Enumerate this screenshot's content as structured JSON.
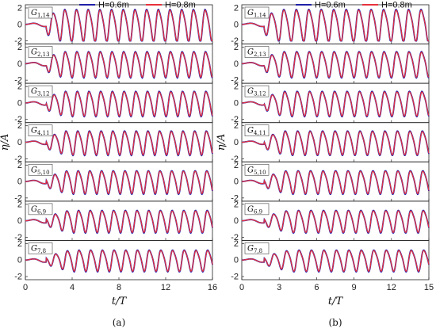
{
  "chart_data": [
    {
      "type": "line",
      "panel_label": "(a)",
      "xlabel": "t/T",
      "ylabel": "η/A",
      "xlim": [
        0,
        16
      ],
      "ylim": [
        -2,
        2
      ],
      "x_ticks": [
        "0",
        "4",
        "8",
        "12",
        "16"
      ],
      "y_ticks": [
        "-2",
        "0",
        "2"
      ],
      "series": [
        {
          "name": "H=0.6m",
          "color": "#1f1fa8"
        },
        {
          "name": "H=0.8m",
          "color": "#e8313c"
        }
      ],
      "legend": "top-right",
      "subplots": [
        {
          "gauge": "G",
          "sub": "1,14"
        },
        {
          "gauge": "G",
          "sub": "2,13"
        },
        {
          "gauge": "G",
          "sub": "3,12"
        },
        {
          "gauge": "G",
          "sub": "4,11"
        },
        {
          "gauge": "G",
          "sub": "5,10"
        },
        {
          "gauge": "G",
          "sub": "6,9"
        },
        {
          "gauge": "G",
          "sub": "7,8"
        }
      ]
    },
    {
      "type": "line",
      "panel_label": "(b)",
      "xlabel": "t/T",
      "ylabel": "η/A",
      "xlim": [
        0,
        15
      ],
      "ylim": [
        -2,
        2
      ],
      "x_ticks": [
        "0",
        "3",
        "6",
        "9",
        "12",
        "15"
      ],
      "y_ticks": [
        "-2",
        "0",
        "2"
      ],
      "series": [
        {
          "name": "H=0.6m",
          "color": "#1f1fa8"
        },
        {
          "name": "H=0.8m",
          "color": "#e8313c"
        }
      ],
      "legend": "top-right",
      "subplots": [
        {
          "gauge": "G",
          "sub": "1,14"
        },
        {
          "gauge": "G",
          "sub": "2,13"
        },
        {
          "gauge": "G",
          "sub": "3,12"
        },
        {
          "gauge": "G",
          "sub": "4,11"
        },
        {
          "gauge": "G",
          "sub": "5,10"
        },
        {
          "gauge": "G",
          "sub": "6,9"
        },
        {
          "gauge": "G",
          "sub": "7,8"
        }
      ]
    }
  ]
}
